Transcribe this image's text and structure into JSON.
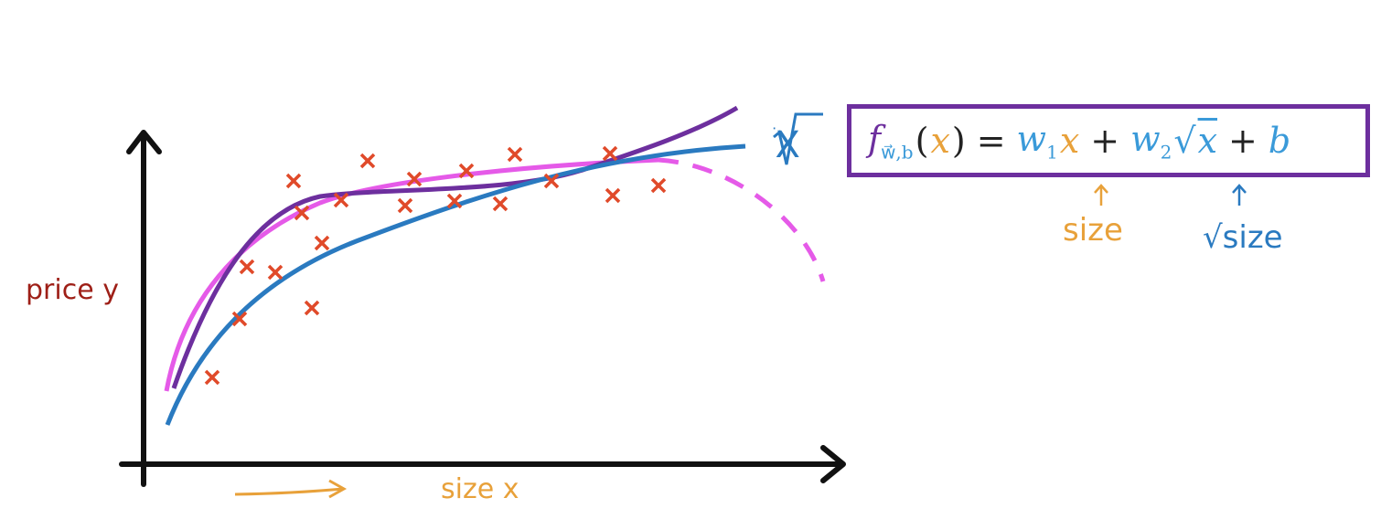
{
  "axes": {
    "y_label": "price y",
    "x_label": "size x"
  },
  "curve_label": "√X",
  "formula": {
    "parts": [
      "f",
      "w⃗,b",
      "(",
      "x",
      ")",
      "=",
      "w",
      "1",
      "x",
      "+",
      "w",
      "2",
      "√",
      "x",
      "+",
      "b"
    ]
  },
  "annotations": [
    "size",
    "√size"
  ]
}
